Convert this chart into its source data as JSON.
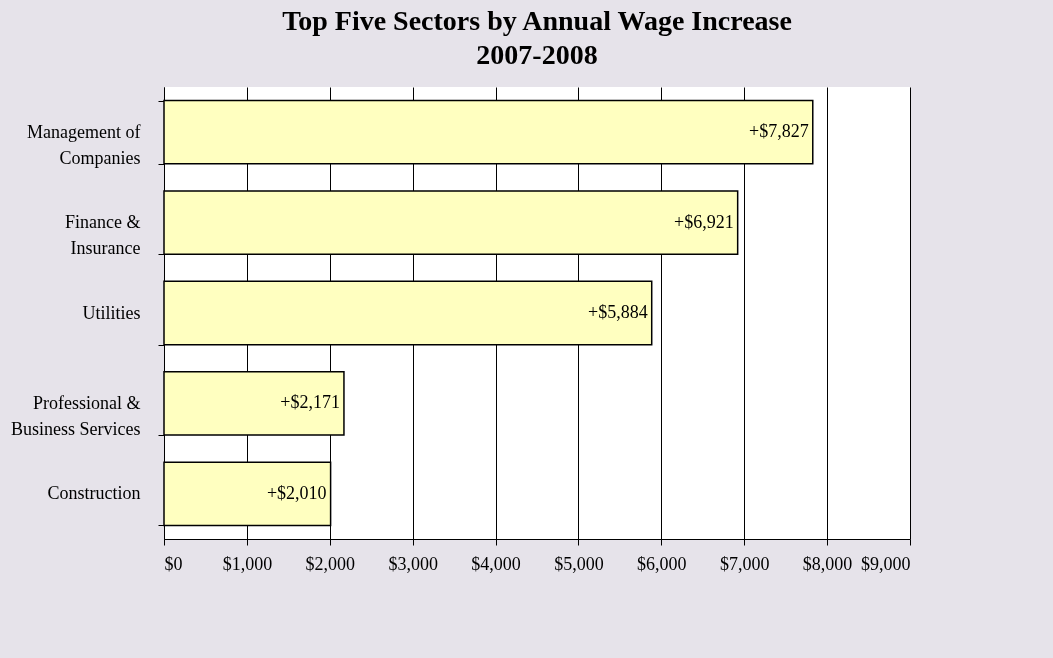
{
  "chart_data": {
    "type": "bar",
    "orientation": "horizontal",
    "title": "Top Five Sectors by Annual Wage Increase",
    "subtitle": "2007-2008",
    "categories": [
      "Management of Companies",
      "Finance & Insurance",
      "Utilities",
      "Professional & Business Services",
      "Construction"
    ],
    "values": [
      7827,
      6921,
      5884,
      2171,
      2010
    ],
    "value_labels": [
      "+$7,827",
      "+$6,921",
      "+$5,884",
      "+$2,171",
      "+$2,010"
    ],
    "color": "#ffffc0",
    "xlim": [
      0,
      9000
    ],
    "xticks": [
      {
        "value": 0,
        "label": "$0"
      },
      {
        "value": 1000,
        "label": "$1,000"
      },
      {
        "value": 2000,
        "label": "$2,000"
      },
      {
        "value": 3000,
        "label": "$3,000"
      },
      {
        "value": 4000,
        "label": "$4,000"
      },
      {
        "value": 5000,
        "label": "$5,000"
      },
      {
        "value": 6000,
        "label": "$6,000"
      },
      {
        "value": 7000,
        "label": "$7,000"
      },
      {
        "value": 8000,
        "label": "$8,000"
      },
      {
        "value": 9000,
        "label": "$9,000"
      }
    ],
    "grid": "x"
  }
}
